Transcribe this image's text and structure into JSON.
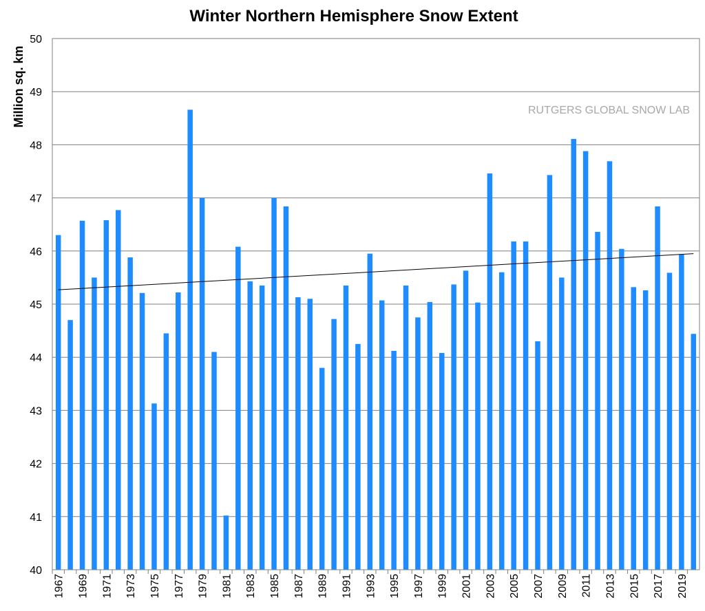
{
  "chart_data": {
    "type": "bar",
    "title": "Winter Northern Hemisphere Snow Extent",
    "xlabel": "",
    "ylabel": "Million sq. km",
    "watermark": "RUTGERS GLOBAL SNOW LAB",
    "ylim": [
      40,
      50
    ],
    "yticks": [
      40,
      41,
      42,
      43,
      44,
      45,
      46,
      47,
      48,
      49,
      50
    ],
    "grid": true,
    "legend": "none",
    "bar_color": "#1e8cff",
    "trend_color": "#000000",
    "grid_color": "#7f7f7f",
    "categories": [
      "1967",
      "1968",
      "1969",
      "1970",
      "1971",
      "1972",
      "1973",
      "1974",
      "1975",
      "1976",
      "1977",
      "1978",
      "1979",
      "1980",
      "1981",
      "1982",
      "1983",
      "1984",
      "1985",
      "1986",
      "1987",
      "1988",
      "1989",
      "1990",
      "1991",
      "1992",
      "1993",
      "1994",
      "1995",
      "1996",
      "1997",
      "1998",
      "1999",
      "2000",
      "2001",
      "2002",
      "2003",
      "2004",
      "2005",
      "2006",
      "2007",
      "2008",
      "2009",
      "2010",
      "2011",
      "2012",
      "2013",
      "2014",
      "2015",
      "2016",
      "2017",
      "2018",
      "2019",
      "2020"
    ],
    "x_tick_labels": [
      "1967",
      "1969",
      "1971",
      "1973",
      "1975",
      "1977",
      "1979",
      "1981",
      "1983",
      "1985",
      "1987",
      "1989",
      "1991",
      "1993",
      "1995",
      "1997",
      "1999",
      "2001",
      "2003",
      "2005",
      "2007",
      "2009",
      "2011",
      "2013",
      "2015",
      "2017",
      "2019"
    ],
    "values": [
      46.3,
      44.7,
      46.57,
      45.5,
      46.58,
      46.77,
      45.88,
      45.21,
      43.13,
      44.45,
      45.22,
      48.66,
      47.0,
      44.1,
      41.02,
      46.08,
      45.43,
      45.35,
      47.0,
      46.84,
      45.13,
      45.1,
      43.8,
      44.72,
      45.35,
      44.25,
      45.95,
      45.07,
      44.12,
      45.35,
      44.75,
      45.04,
      44.08,
      45.37,
      45.63,
      45.03,
      47.46,
      45.6,
      46.18,
      46.18,
      44.3,
      47.43,
      45.5,
      48.11,
      47.88,
      46.36,
      47.69,
      46.04,
      45.32,
      45.26,
      46.84,
      45.59,
      45.94,
      44.44
    ],
    "trend": {
      "start": 45.27,
      "end": 45.95
    }
  }
}
